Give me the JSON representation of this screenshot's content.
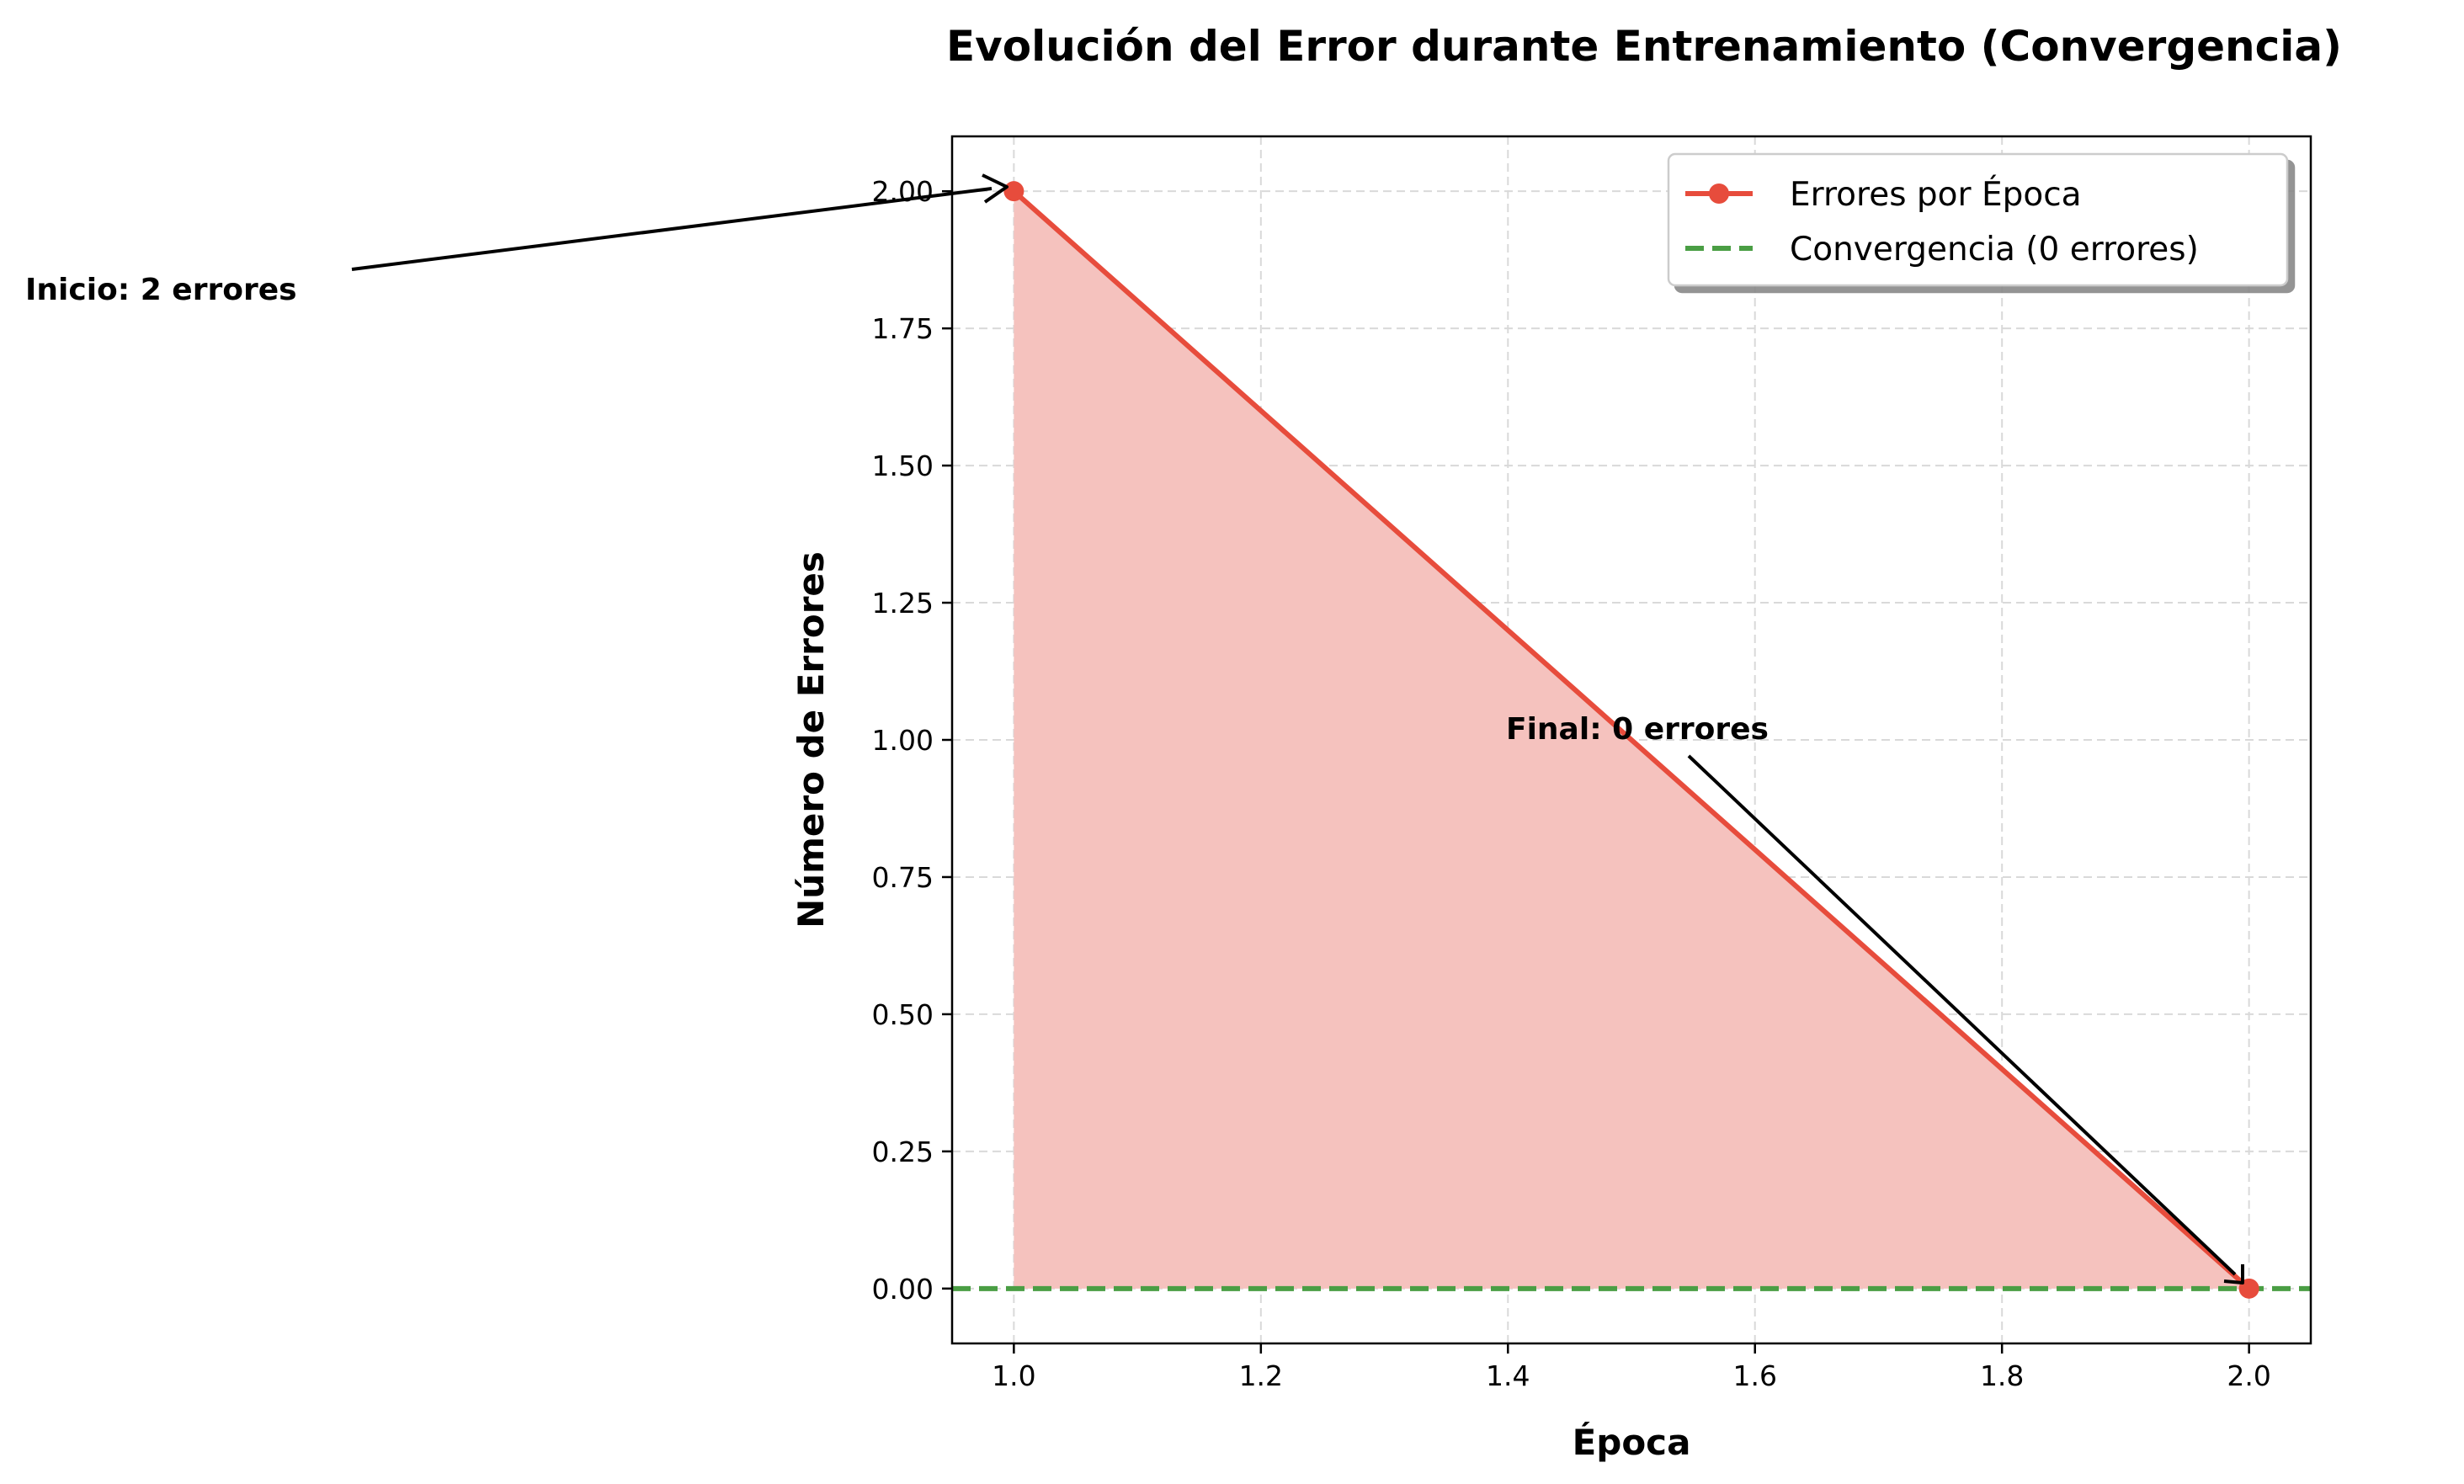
{
  "chart_data": {
    "type": "line",
    "title": "Evolución del Error durante Entrenamiento (Convergencia)",
    "xlabel": "Época",
    "ylabel": "Número de Errores",
    "xlim": [
      0.95,
      2.05
    ],
    "ylim": [
      -0.1,
      2.1
    ],
    "xticks": [
      1.0,
      1.2,
      1.4,
      1.6,
      1.8,
      2.0
    ],
    "xtick_labels": [
      "1.0",
      "1.2",
      "1.4",
      "1.6",
      "1.8",
      "2.0"
    ],
    "yticks": [
      0.0,
      0.25,
      0.5,
      0.75,
      1.0,
      1.25,
      1.5,
      1.75,
      2.0
    ],
    "ytick_labels": [
      "0.00",
      "0.25",
      "0.50",
      "0.75",
      "1.00",
      "1.25",
      "1.50",
      "1.75",
      "2.00"
    ],
    "grid": true,
    "legend_position": "top-right",
    "series": [
      {
        "name": "Errores por Época",
        "x": [
          1,
          2
        ],
        "values": [
          2,
          0
        ],
        "color": "#e74c3c",
        "fill": true,
        "fill_color": "#f5c2be"
      }
    ],
    "reference_lines": [
      {
        "name": "Convergencia (0 errores)",
        "y": 0,
        "color": "#4a9e44",
        "style": "dashed"
      }
    ],
    "annotations": [
      {
        "text": "Inicio: 2 errores",
        "target": [
          1,
          2
        ]
      },
      {
        "text": "Final: 0 errores",
        "target": [
          2,
          0
        ]
      }
    ]
  }
}
